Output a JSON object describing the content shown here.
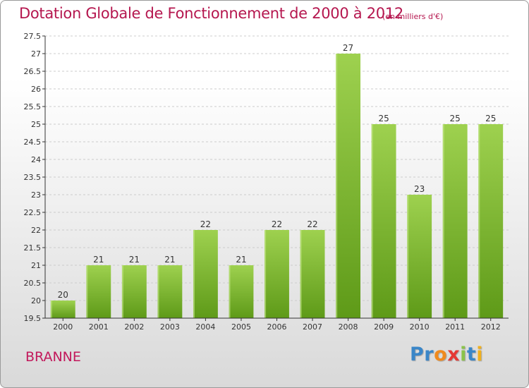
{
  "header": {
    "title": "Dotation Globale de Fonctionnement de 2000 à 2012",
    "unit": "(en milliers d'€)"
  },
  "footer": {
    "commune": "BRANNE",
    "logo_letters": [
      {
        "char": "P",
        "color": "#3a86c8"
      },
      {
        "char": "r",
        "color": "#3a86c8"
      },
      {
        "char": "o",
        "color": "#f08a1e"
      },
      {
        "char": "x",
        "color": "#e53935"
      },
      {
        "char": "i",
        "color": "#8bc34a"
      },
      {
        "char": "t",
        "color": "#3a86c8"
      },
      {
        "char": "i",
        "color": "#f0b01e"
      }
    ]
  },
  "colors": {
    "bar_light": "#9ed14f",
    "bar_dark": "#5e9a18",
    "title": "#b5174f",
    "axis": "#333333",
    "grid": "#cccccc"
  },
  "chart_data": {
    "type": "bar",
    "title": "Dotation Globale de Fonctionnement de 2000 à 2012",
    "subtitle": "(en milliers d'€)",
    "xlabel": "",
    "ylabel": "",
    "categories": [
      "2000",
      "2001",
      "2002",
      "2003",
      "2004",
      "2005",
      "2006",
      "2007",
      "2008",
      "2009",
      "2010",
      "2011",
      "2012"
    ],
    "values": [
      20,
      21,
      21,
      21,
      22,
      21,
      22,
      22,
      27,
      25,
      23,
      25,
      25
    ],
    "value_labels": [
      "20",
      "21",
      "21",
      "21",
      "22",
      "21",
      "22",
      "22",
      "27",
      "25",
      "23",
      "25",
      "25"
    ],
    "ylim": [
      19.5,
      27.5
    ],
    "yticks": [
      "19.5",
      "20",
      "20.5",
      "21",
      "21.5",
      "22",
      "22.5",
      "23",
      "23.5",
      "24",
      "24.5",
      "25",
      "25.5",
      "26",
      "26.5",
      "27",
      "27.5"
    ],
    "grid": "horizontal-dashed",
    "legend": "none"
  }
}
